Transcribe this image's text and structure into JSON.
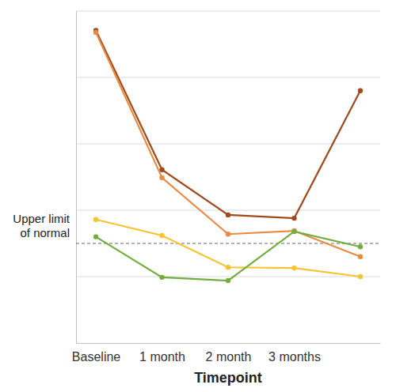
{
  "chart_data": {
    "type": "line",
    "x_label": "Timepoint",
    "categories": [
      "Baseline",
      "1 month",
      "2 month",
      "3 months",
      null
    ],
    "series": [
      {
        "color": "#9e4a1c",
        "marker": "circle",
        "values": [
          47.1,
          26.1,
          19.3,
          18.8,
          38
        ]
      },
      {
        "color": "#e98a44",
        "marker": "circle",
        "values": [
          46.8,
          24.9,
          16.4,
          16.9,
          13
        ]
      },
      {
        "color": "#f5c431",
        "marker": "circle",
        "values": [
          18.6,
          16.2,
          11.4,
          11.3,
          10
        ]
      },
      {
        "color": "#72ad3f",
        "marker": "circle",
        "values": [
          16.0,
          9.9,
          9.4,
          16.8,
          14.5
        ]
      }
    ],
    "reference_line": {
      "value": 15,
      "label_lines": [
        "Upper limit",
        "of normal"
      ],
      "line_style": "dashed"
    },
    "ylim": [
      0,
      50
    ],
    "yticks": [
      10,
      20,
      30,
      40,
      50
    ],
    "grid": true,
    "tick_labels": "x"
  }
}
